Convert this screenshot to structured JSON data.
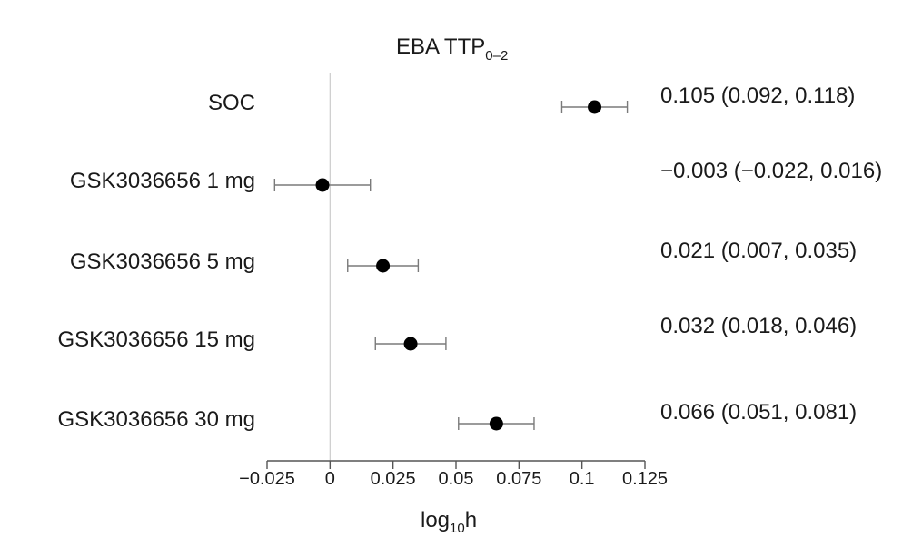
{
  "chart_data": {
    "type": "forest",
    "title": {
      "main": "EBA TTP",
      "subscript": "0–2"
    },
    "xlabel": {
      "main": "log",
      "subscript": "10",
      "suffix": "h"
    },
    "categories": [
      "SOC",
      "GSK3036656 1 mg",
      "GSK3036656 5 mg",
      "GSK3036656 15 mg",
      "GSK3036656 30 mg"
    ],
    "estimates": [
      0.105,
      -0.003,
      0.021,
      0.032,
      0.066
    ],
    "ci_lower": [
      0.092,
      -0.022,
      0.007,
      0.018,
      0.051
    ],
    "ci_upper": [
      0.118,
      0.016,
      0.035,
      0.046,
      0.081
    ],
    "annotations": [
      "0.105 (0.092, 0.118)",
      "−0.003 (−0.022, 0.016)",
      "0.021 (0.007, 0.035)",
      "0.032 (0.018, 0.046)",
      "0.066 (0.051, 0.081)"
    ],
    "xlim": [
      -0.025,
      0.125
    ],
    "xticks": [
      -0.025,
      0,
      0.025,
      0.05,
      0.075,
      0.1,
      0.125
    ],
    "xtick_labels": [
      "−0.025",
      "0",
      "0.025",
      "0.05",
      "0.075",
      "0.1",
      "0.125"
    ],
    "reference_line": 0,
    "grid": false,
    "colors": {
      "point": "#000000",
      "ci": "#7a7a7a",
      "reference": "#d0d0d0",
      "axis": "#555555"
    }
  }
}
